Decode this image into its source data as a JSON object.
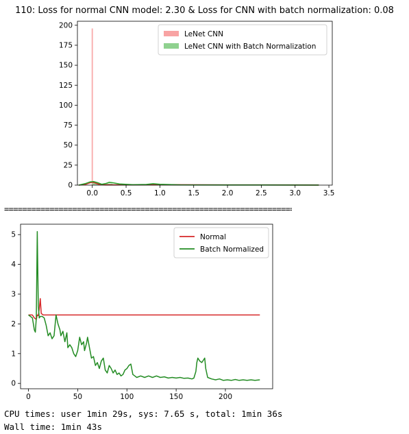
{
  "cell_output": {
    "title": "110: Loss for normal CNN model: 2.30 & Loss for CNN with batch normalization: 0.08",
    "separator": "================================================================",
    "cpu_times": "CPU times: user 1min 29s, sys: 7.65 s, total: 1min 36s",
    "wall_time": "Wall time: 1min 43s"
  },
  "chart_data": [
    {
      "type": "histogram",
      "title": "110: Loss for normal CNN model: 2.30 & Loss for CNN with batch normalization: 0.08",
      "xlim": [
        -0.22,
        3.55
      ],
      "ylim": [
        0,
        205
      ],
      "xticks": [
        0.0,
        0.5,
        1.0,
        1.5,
        2.0,
        2.5,
        3.0,
        3.5
      ],
      "xtick_labels": [
        "0.0",
        "0.5",
        "1.0",
        "1.5",
        "2.0",
        "2.5",
        "3.0",
        "3.5"
      ],
      "yticks": [
        0,
        25,
        50,
        75,
        100,
        125,
        150,
        175,
        200
      ],
      "grid": false,
      "legend_position": "top-right",
      "series": [
        {
          "name": "LeNet CNN",
          "color": "#f8a3a3",
          "line_color": "#d62728",
          "bins": [
            [
              -0.01,
              0.01,
              196
            ]
          ],
          "kde": [
            [
              -0.2,
              0
            ],
            [
              -0.1,
              1
            ],
            [
              -0.03,
              3
            ],
            [
              0.0,
              3.5
            ],
            [
              0.03,
              3
            ],
            [
              0.1,
              1
            ],
            [
              0.2,
              0.3
            ],
            [
              0.5,
              0.3
            ],
            [
              1.0,
              0.5
            ],
            [
              2.0,
              0.3
            ],
            [
              3.35,
              0.2
            ]
          ]
        },
        {
          "name": "LeNet CNN with Batch Normalization",
          "color": "#8fd18f",
          "line_color": "#2ca02c",
          "bins": [
            [
              0.0,
              0.05,
              4
            ],
            [
              0.05,
              0.1,
              3
            ],
            [
              0.2,
              0.3,
              2
            ],
            [
              0.3,
              0.4,
              1
            ],
            [
              0.9,
              1.0,
              1
            ]
          ],
          "kde": [
            [
              -0.2,
              0
            ],
            [
              -0.1,
              2
            ],
            [
              -0.03,
              4
            ],
            [
              0.02,
              4.5
            ],
            [
              0.08,
              3
            ],
            [
              0.14,
              1
            ],
            [
              0.2,
              2
            ],
            [
              0.25,
              3.5
            ],
            [
              0.3,
              3
            ],
            [
              0.4,
              1.5
            ],
            [
              0.6,
              0.5
            ],
            [
              0.8,
              0.8
            ],
            [
              0.9,
              1.8
            ],
            [
              1.0,
              1
            ],
            [
              1.3,
              0.3
            ],
            [
              2.0,
              0.2
            ],
            [
              3.35,
              0.1
            ]
          ]
        }
      ]
    },
    {
      "type": "line",
      "xlim": [
        -8,
        248
      ],
      "ylim": [
        -0.18,
        5.35
      ],
      "xticks": [
        0,
        50,
        100,
        150,
        200
      ],
      "yticks": [
        0,
        1,
        2,
        3,
        4,
        5
      ],
      "grid": false,
      "legend_position": "top-right",
      "series": [
        {
          "name": "Normal",
          "color": "#d62728",
          "points": [
            [
              0,
              2.3
            ],
            [
              4,
              2.3
            ],
            [
              6,
              2.2
            ],
            [
              8,
              2.15
            ],
            [
              9,
              2.3
            ],
            [
              10,
              2.28
            ],
            [
              11,
              2.5
            ],
            [
              12,
              2.85
            ],
            [
              13,
              2.35
            ],
            [
              15,
              2.3
            ],
            [
              235,
              2.3
            ]
          ]
        },
        {
          "name": "Batch Normalized",
          "color": "#228b22",
          "points": [
            [
              0,
              2.3
            ],
            [
              2,
              2.25
            ],
            [
              4,
              2.2
            ],
            [
              5,
              2.0
            ],
            [
              6,
              1.8
            ],
            [
              7,
              1.72
            ],
            [
              8,
              2.2
            ],
            [
              9,
              5.1
            ],
            [
              10,
              2.6
            ],
            [
              11,
              2.2
            ],
            [
              12,
              2.25
            ],
            [
              14,
              2.25
            ],
            [
              16,
              2.2
            ],
            [
              18,
              1.95
            ],
            [
              20,
              1.6
            ],
            [
              22,
              1.7
            ],
            [
              24,
              1.5
            ],
            [
              26,
              1.6
            ],
            [
              28,
              2.3
            ],
            [
              30,
              2.0
            ],
            [
              32,
              1.8
            ],
            [
              33,
              1.6
            ],
            [
              35,
              1.75
            ],
            [
              37,
              1.4
            ],
            [
              39,
              1.7
            ],
            [
              40,
              1.2
            ],
            [
              42,
              1.3
            ],
            [
              44,
              1.2
            ],
            [
              46,
              1.0
            ],
            [
              48,
              0.9
            ],
            [
              50,
              1.1
            ],
            [
              52,
              1.55
            ],
            [
              54,
              1.3
            ],
            [
              56,
              1.4
            ],
            [
              57,
              1.1
            ],
            [
              59,
              1.35
            ],
            [
              60,
              1.55
            ],
            [
              62,
              1.2
            ],
            [
              64,
              0.85
            ],
            [
              66,
              0.9
            ],
            [
              68,
              0.6
            ],
            [
              70,
              0.7
            ],
            [
              72,
              0.5
            ],
            [
              74,
              0.75
            ],
            [
              76,
              0.85
            ],
            [
              78,
              0.45
            ],
            [
              80,
              0.35
            ],
            [
              82,
              0.6
            ],
            [
              84,
              0.5
            ],
            [
              86,
              0.35
            ],
            [
              88,
              0.45
            ],
            [
              90,
              0.3
            ],
            [
              92,
              0.35
            ],
            [
              94,
              0.25
            ],
            [
              96,
              0.3
            ],
            [
              98,
              0.45
            ],
            [
              100,
              0.5
            ],
            [
              102,
              0.6
            ],
            [
              104,
              0.65
            ],
            [
              106,
              0.3
            ],
            [
              108,
              0.25
            ],
            [
              110,
              0.2
            ],
            [
              114,
              0.25
            ],
            [
              118,
              0.2
            ],
            [
              122,
              0.25
            ],
            [
              126,
              0.2
            ],
            [
              130,
              0.25
            ],
            [
              134,
              0.2
            ],
            [
              138,
              0.22
            ],
            [
              142,
              0.18
            ],
            [
              146,
              0.2
            ],
            [
              150,
              0.18
            ],
            [
              154,
              0.2
            ],
            [
              158,
              0.17
            ],
            [
              162,
              0.18
            ],
            [
              166,
              0.15
            ],
            [
              168,
              0.18
            ],
            [
              170,
              0.4
            ],
            [
              171,
              0.7
            ],
            [
              172,
              0.85
            ],
            [
              174,
              0.75
            ],
            [
              176,
              0.7
            ],
            [
              178,
              0.8
            ],
            [
              179,
              0.85
            ],
            [
              180,
              0.5
            ],
            [
              182,
              0.2
            ],
            [
              186,
              0.15
            ],
            [
              190,
              0.12
            ],
            [
              194,
              0.15
            ],
            [
              198,
              0.1
            ],
            [
              202,
              0.12
            ],
            [
              206,
              0.1
            ],
            [
              210,
              0.13
            ],
            [
              214,
              0.1
            ],
            [
              218,
              0.12
            ],
            [
              222,
              0.1
            ],
            [
              226,
              0.12
            ],
            [
              230,
              0.1
            ],
            [
              235,
              0.12
            ]
          ]
        }
      ]
    }
  ]
}
